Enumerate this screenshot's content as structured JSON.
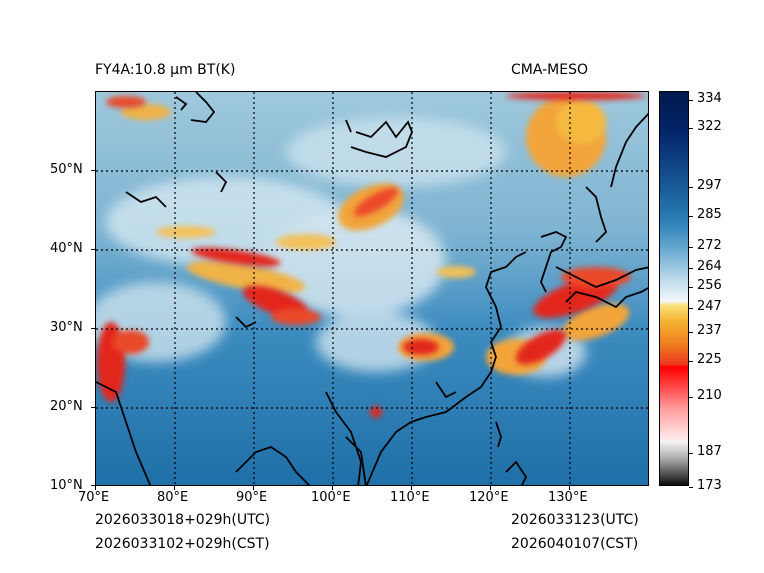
{
  "header": {
    "product": "FY4A:10.8 µm BT(K)",
    "source": "CMA-MESO"
  },
  "footer": {
    "init_utc": "2026033018+029h(UTC)",
    "init_cst": "2026033102+029h(CST)",
    "valid_utc": "2026033123(UTC)",
    "valid_cst": "2026040107(CST)"
  },
  "map": {
    "lon_labels": [
      "70°E",
      "80°E",
      "90°E",
      "100°E",
      "110°E",
      "120°E",
      "130°E"
    ],
    "lat_labels": [
      "50°N",
      "40°N",
      "30°N",
      "20°N",
      "10°N"
    ],
    "lon_range": [
      70,
      140
    ],
    "lat_range": [
      10,
      60
    ],
    "grid": "dotted"
  },
  "colorbar": {
    "labels": [
      "334",
      "322",
      "297",
      "285",
      "272",
      "264",
      "256",
      "247",
      "237",
      "225",
      "210",
      "187",
      "173"
    ],
    "range": [
      173,
      336
    ]
  },
  "colors": {
    "cold_cloud": "#e8261c",
    "mid_cloud": "#f5a623",
    "clear_sky": "#2a7fb4",
    "deep_warm": "#0a2a6a"
  }
}
